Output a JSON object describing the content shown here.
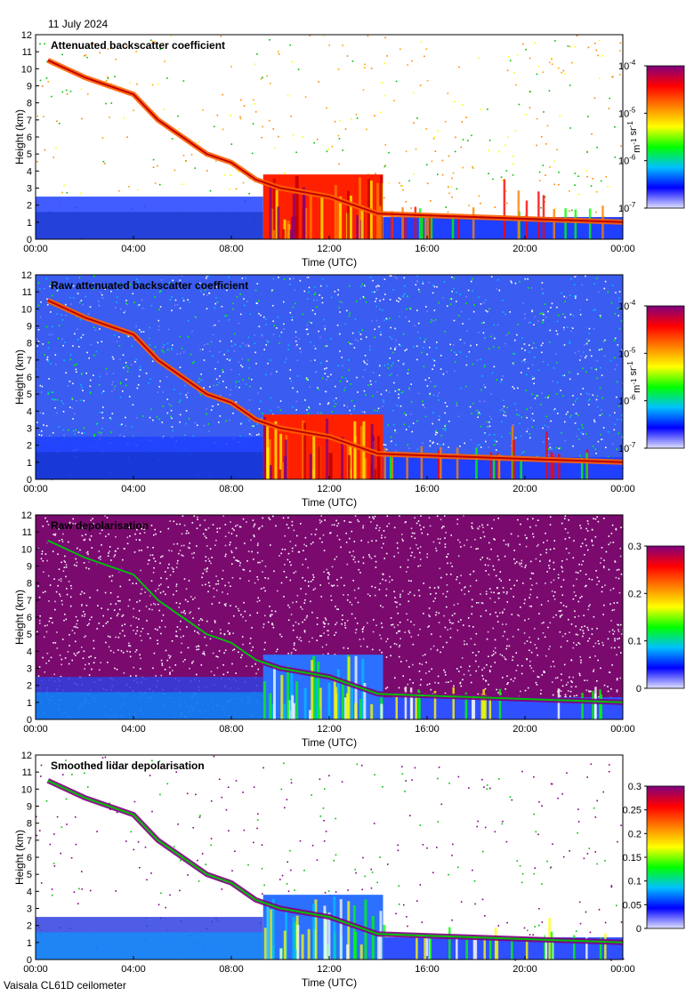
{
  "date_label": "11 July 2024",
  "footer_label": "Vaisala CL61D ceilometer",
  "colors": {
    "cloud_gradient": [
      "#7f007f",
      "#ff0000",
      "#ff8000",
      "#ffff00",
      "#00ff00",
      "#00c0ff",
      "#0000ff",
      "#e0e0ff"
    ]
  },
  "chart_data": [
    {
      "type": "heatmap",
      "title": "Attenuated backscatter coefficient",
      "xlabel": "Time (UTC)",
      "ylabel": "Height (km)",
      "x_ticks": [
        "00:00",
        "04:00",
        "08:00",
        "12:00",
        "16:00",
        "20:00",
        "00:00"
      ],
      "y_ticks": [
        "0",
        "1",
        "2",
        "3",
        "4",
        "5",
        "6",
        "7",
        "8",
        "9",
        "10",
        "11",
        "12"
      ],
      "xlim_hours": [
        0,
        24
      ],
      "ylim_km": [
        0,
        12
      ],
      "colorbar": {
        "ticks": [
          "10-7",
          "10-6",
          "10-5",
          "10-4"
        ],
        "unit": "m-1 sr-1",
        "scale": "log",
        "range": [
          1e-07,
          0.0001
        ]
      },
      "background": "#ffffff",
      "noise": "sparse"
    },
    {
      "type": "heatmap",
      "title": "Raw attenuated backscatter coefficient",
      "xlabel": "Time (UTC)",
      "ylabel": "Height (km)",
      "x_ticks": [
        "00:00",
        "04:00",
        "08:00",
        "12:00",
        "16:00",
        "20:00",
        "00:00"
      ],
      "y_ticks": [
        "0",
        "1",
        "2",
        "3",
        "4",
        "5",
        "6",
        "7",
        "8",
        "9",
        "10",
        "11",
        "12"
      ],
      "xlim_hours": [
        0,
        24
      ],
      "ylim_km": [
        0,
        12
      ],
      "colorbar": {
        "ticks": [
          "10-7",
          "10-6",
          "10-5",
          "10-4"
        ],
        "unit": "m-1 sr-1",
        "scale": "log",
        "range": [
          1e-07,
          0.0001
        ]
      },
      "background": "#3a5cf0",
      "noise": "dense"
    },
    {
      "type": "heatmap",
      "title": "Raw depolarisation",
      "xlabel": "Time (UTC)",
      "ylabel": "Height (km)",
      "x_ticks": [
        "00:00",
        "04:00",
        "08:00",
        "12:00",
        "16:00",
        "20:00",
        "00:00"
      ],
      "y_ticks": [
        "0",
        "1",
        "2",
        "3",
        "4",
        "5",
        "6",
        "7",
        "8",
        "9",
        "10",
        "11",
        "12"
      ],
      "xlim_hours": [
        0,
        24
      ],
      "ylim_km": [
        0,
        12
      ],
      "colorbar": {
        "ticks": [
          "0",
          "0.1",
          "0.2",
          "0.3"
        ],
        "unit": "",
        "scale": "linear",
        "range": [
          0,
          0.3
        ]
      },
      "background": "#7a0a6e",
      "noise": "depol"
    },
    {
      "type": "heatmap",
      "title": "Smoothed lidar depolarisation",
      "xlabel": "Time (UTC)",
      "ylabel": "Height (km)",
      "x_ticks": [
        "00:00",
        "04:00",
        "08:00",
        "12:00",
        "16:00",
        "20:00",
        "00:00"
      ],
      "y_ticks": [
        "0",
        "1",
        "2",
        "3",
        "4",
        "5",
        "6",
        "7",
        "8",
        "9",
        "10",
        "11",
        "12"
      ],
      "xlim_hours": [
        0,
        24
      ],
      "ylim_km": [
        0,
        12
      ],
      "colorbar": {
        "ticks": [
          "0",
          "0.05",
          "0.1",
          "0.15",
          "0.2",
          "0.25",
          "0.3"
        ],
        "unit": "",
        "scale": "linear",
        "range": [
          0,
          0.3
        ]
      },
      "background": "#ffffff",
      "noise": "sparse-purple"
    }
  ],
  "features": {
    "descending_cloud_layer_km": [
      [
        0.5,
        10.5
      ],
      [
        2,
        9.5
      ],
      [
        4,
        8.5
      ],
      [
        5,
        7
      ],
      [
        6,
        6
      ],
      [
        7,
        5
      ],
      [
        8,
        4.5
      ],
      [
        9,
        3.5
      ],
      [
        10,
        3
      ],
      [
        12,
        2.5
      ],
      [
        13,
        2
      ],
      [
        14,
        1.5
      ],
      [
        24,
        1
      ]
    ],
    "boundary_layer_top_km": 2.5,
    "rain_period_hours": [
      9.3,
      14.2
    ]
  }
}
